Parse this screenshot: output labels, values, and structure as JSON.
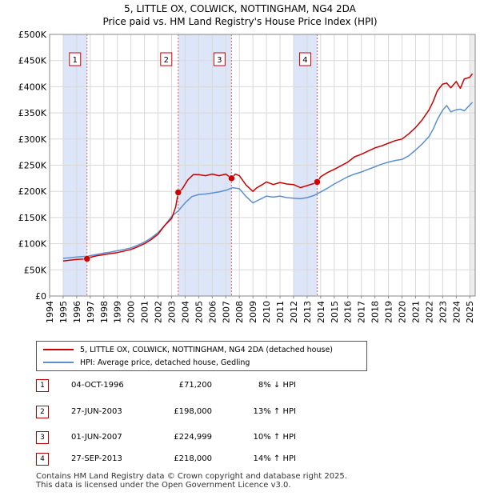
{
  "title": "5, LITTLE OX, COLWICK, NOTTINGHAM, NG4 2DA",
  "subtitle": "Price paid vs. HM Land Registry's House Price Index (HPI)",
  "colors": {
    "property": "#cc0000",
    "hpi": "#5b8fd0",
    "shade": "#dde6f8",
    "grid": "#d8d8d8",
    "vline": "#e06060"
  },
  "chart_data": {
    "type": "line",
    "title": "Price paid vs. HM Land Registry's House Price Index (HPI)",
    "xlim": [
      1994,
      2025.4
    ],
    "ylim": [
      0,
      500000
    ],
    "x_ticks": [
      "1994",
      "1995",
      "1996",
      "1997",
      "1998",
      "1999",
      "2000",
      "2001",
      "2002",
      "2003",
      "2004",
      "2005",
      "2006",
      "2007",
      "2008",
      "2009",
      "2010",
      "2011",
      "2012",
      "2013",
      "2014",
      "2015",
      "2016",
      "2017",
      "2018",
      "2019",
      "2020",
      "2021",
      "2022",
      "2023",
      "2024",
      "2025"
    ],
    "y_ticks": [
      {
        "value": 0,
        "label": "£0"
      },
      {
        "value": 50000,
        "label": "£50K"
      },
      {
        "value": 100000,
        "label": "£100K"
      },
      {
        "value": 150000,
        "label": "£150K"
      },
      {
        "value": 200000,
        "label": "£200K"
      },
      {
        "value": 250000,
        "label": "£250K"
      },
      {
        "value": 300000,
        "label": "£300K"
      },
      {
        "value": 350000,
        "label": "£350K"
      },
      {
        "value": 400000,
        "label": "£400K"
      },
      {
        "value": 450000,
        "label": "£450K"
      },
      {
        "value": 500000,
        "label": "£500K"
      }
    ],
    "shaded_ranges": [
      [
        1995.0,
        1996.76
      ],
      [
        2003.49,
        2007.42
      ],
      [
        2012.0,
        2013.74
      ]
    ],
    "sales": [
      {
        "id": "1",
        "x": 1996.76,
        "y": 71200
      },
      {
        "id": "2",
        "x": 2003.49,
        "y": 198000
      },
      {
        "id": "3",
        "x": 2007.42,
        "y": 224999
      },
      {
        "id": "4",
        "x": 2013.74,
        "y": 218000
      }
    ],
    "series": [
      {
        "name": "5, LITTLE OX, COLWICK, NOTTINGHAM, NG4 2DA (detached house)",
        "color": "#cc0000",
        "x": [
          1995.0,
          1995.5,
          1996.0,
          1996.5,
          1996.76,
          1997.0,
          1997.5,
          1998.0,
          1998.5,
          1999.0,
          1999.5,
          2000.0,
          2000.5,
          2001.0,
          2001.5,
          2002.0,
          2002.5,
          2003.0,
          2003.3,
          2003.49,
          2003.8,
          2004.2,
          2004.6,
          2005.0,
          2005.5,
          2006.0,
          2006.5,
          2007.0,
          2007.42,
          2007.7,
          2008.0,
          2008.5,
          2009.0,
          2009.3,
          2009.7,
          2010.0,
          2010.5,
          2011.0,
          2011.5,
          2012.0,
          2012.5,
          2013.0,
          2013.5,
          2013.74,
          2014.0,
          2014.5,
          2015.0,
          2015.5,
          2016.0,
          2016.5,
          2017.0,
          2017.5,
          2018.0,
          2018.5,
          2019.0,
          2019.5,
          2020.0,
          2020.5,
          2021.0,
          2021.5,
          2022.0,
          2022.3,
          2022.6,
          2023.0,
          2023.3,
          2023.6,
          2024.0,
          2024.3,
          2024.6,
          2025.0,
          2025.2
        ],
        "y": [
          67000,
          68500,
          70000,
          70500,
          71200,
          74000,
          77000,
          79000,
          81000,
          83000,
          86000,
          89000,
          94000,
          100000,
          108000,
          118000,
          135000,
          148000,
          170000,
          198000,
          205000,
          222000,
          232000,
          232000,
          230000,
          233000,
          230000,
          233000,
          224999,
          233000,
          230000,
          212000,
          200000,
          207000,
          213000,
          218000,
          213000,
          217000,
          214000,
          213000,
          207000,
          211000,
          215000,
          218000,
          228000,
          236000,
          242000,
          249000,
          256000,
          266000,
          271000,
          277000,
          283000,
          287000,
          292000,
          297000,
          300000,
          310000,
          322000,
          337000,
          356000,
          372000,
          392000,
          405000,
          407000,
          398000,
          410000,
          397000,
          415000,
          418000,
          425000
        ]
      },
      {
        "name": "HPI: Average price, detached house, Gedling",
        "color": "#5b8fd0",
        "x": [
          1995.0,
          1995.5,
          1996.0,
          1996.5,
          1997.0,
          1997.5,
          1998.0,
          1998.5,
          1999.0,
          1999.5,
          2000.0,
          2000.5,
          2001.0,
          2001.5,
          2002.0,
          2002.5,
          2003.0,
          2003.5,
          2004.0,
          2004.5,
          2005.0,
          2005.5,
          2006.0,
          2006.5,
          2007.0,
          2007.5,
          2008.0,
          2008.5,
          2009.0,
          2009.3,
          2009.7,
          2010.0,
          2010.5,
          2011.0,
          2011.5,
          2012.0,
          2012.5,
          2013.0,
          2013.5,
          2014.0,
          2014.5,
          2015.0,
          2015.5,
          2016.0,
          2016.5,
          2017.0,
          2017.5,
          2018.0,
          2018.5,
          2019.0,
          2019.5,
          2020.0,
          2020.5,
          2021.0,
          2021.5,
          2022.0,
          2022.3,
          2022.6,
          2023.0,
          2023.3,
          2023.6,
          2024.0,
          2024.3,
          2024.6,
          2025.0,
          2025.2
        ],
        "y": [
          72000,
          73000,
          74500,
          75500,
          77000,
          79500,
          82000,
          84000,
          86500,
          89000,
          92000,
          97000,
          103000,
          111000,
          121000,
          135000,
          152000,
          163000,
          178000,
          190000,
          194000,
          195000,
          197000,
          199000,
          202000,
          207000,
          205000,
          190000,
          178000,
          182000,
          187000,
          191000,
          189000,
          191000,
          188000,
          187000,
          186000,
          188000,
          192000,
          199000,
          206000,
          214000,
          221000,
          228000,
          233000,
          237000,
          242000,
          247000,
          252000,
          256000,
          259000,
          261000,
          268000,
          279000,
          291000,
          305000,
          319000,
          337000,
          355000,
          364000,
          352000,
          356000,
          357000,
          354000,
          365000,
          370000
        ]
      }
    ]
  },
  "legend": {
    "property": "5, LITTLE OX, COLWICK, NOTTINGHAM, NG4 2DA (detached house)",
    "hpi": "HPI: Average price, detached house, Gedling"
  },
  "transactions": [
    {
      "num": "1",
      "date": "04-OCT-1996",
      "price": "£71,200",
      "rel": "8% ↓ HPI"
    },
    {
      "num": "2",
      "date": "27-JUN-2003",
      "price": "£198,000",
      "rel": "13% ↑ HPI"
    },
    {
      "num": "3",
      "date": "01-JUN-2007",
      "price": "£224,999",
      "rel": "10% ↑ HPI"
    },
    {
      "num": "4",
      "date": "27-SEP-2013",
      "price": "£218,000",
      "rel": "14% ↑ HPI"
    }
  ],
  "footer": {
    "line1": "Contains HM Land Registry data © Crown copyright and database right 2025.",
    "line2": "This data is licensed under the Open Government Licence v3.0."
  }
}
